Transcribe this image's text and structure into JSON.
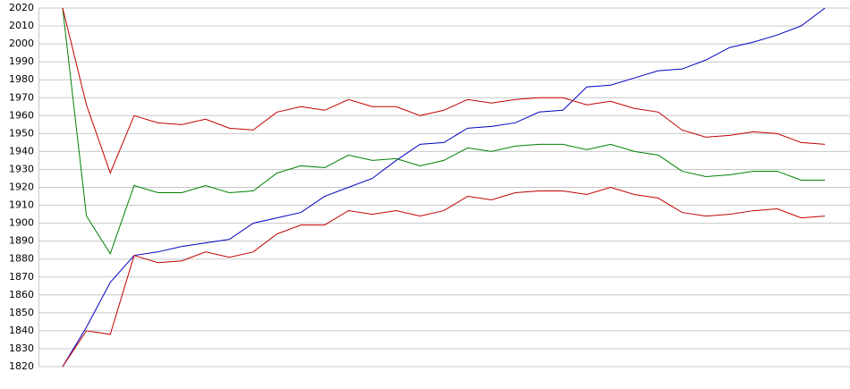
{
  "chart_data": {
    "type": "line",
    "categories": [
      null,
      null,
      null,
      null,
      null,
      null,
      null,
      null,
      null,
      null,
      null,
      null,
      null,
      null,
      null,
      null,
      null,
      null,
      null,
      null,
      null,
      null,
      null,
      null,
      null,
      null,
      null,
      null,
      null,
      null,
      null,
      null,
      null
    ],
    "series": [
      {
        "color": "#0000c0",
        "values": [
          1820,
          1842,
          1867,
          1882,
          1884,
          1887,
          1889,
          1891,
          1900,
          1903,
          1906,
          1915,
          1920,
          1925,
          1935,
          1944,
          1945,
          1953,
          1954,
          1956,
          1962,
          1963,
          1976,
          1977,
          1981,
          1985,
          1986,
          1991,
          1998,
          2001,
          2005,
          2010,
          2020
        ]
      },
      {
        "color": "#008000",
        "values": [
          2020,
          1904,
          1883,
          1921,
          1917,
          1917,
          1921,
          1917,
          1918,
          1928,
          1932,
          1931,
          1938,
          1935,
          1936,
          1932,
          1935,
          1942,
          1940,
          1943,
          1944,
          1944,
          1941,
          1944,
          1940,
          1938,
          1929,
          1926,
          1927,
          1929,
          1929,
          1924,
          1924
        ]
      },
      {
        "color": "#c00000",
        "values": [
          2020,
          1966,
          1928,
          1960,
          1956,
          1955,
          1958,
          1953,
          1952,
          1962,
          1965,
          1963,
          1969,
          1965,
          1965,
          1960,
          1963,
          1969,
          1967,
          1969,
          1970,
          1970,
          1966,
          1968,
          1964,
          1962,
          1952,
          1948,
          1949,
          1951,
          1950,
          1945,
          1944
        ]
      },
      {
        "color": "#c00000",
        "values": [
          1820,
          1840,
          1838,
          1882,
          1878,
          1879,
          1884,
          1881,
          1884,
          1894,
          1899,
          1899,
          1907,
          1905,
          1907,
          1904,
          1907,
          1915,
          1913,
          1917,
          1918,
          1918,
          1916,
          1920,
          1916,
          1914,
          1906,
          1904,
          1905,
          1907,
          1908,
          1903,
          1904
        ]
      }
    ],
    "ylim": [
      1820,
      2020
    ],
    "yticks": [
      1820,
      1830,
      1840,
      1850,
      1860,
      1870,
      1880,
      1890,
      1900,
      1910,
      1920,
      1930,
      1940,
      1950,
      1960,
      1970,
      1980,
      1990,
      2000,
      2010,
      2020
    ],
    "grid": true
  }
}
